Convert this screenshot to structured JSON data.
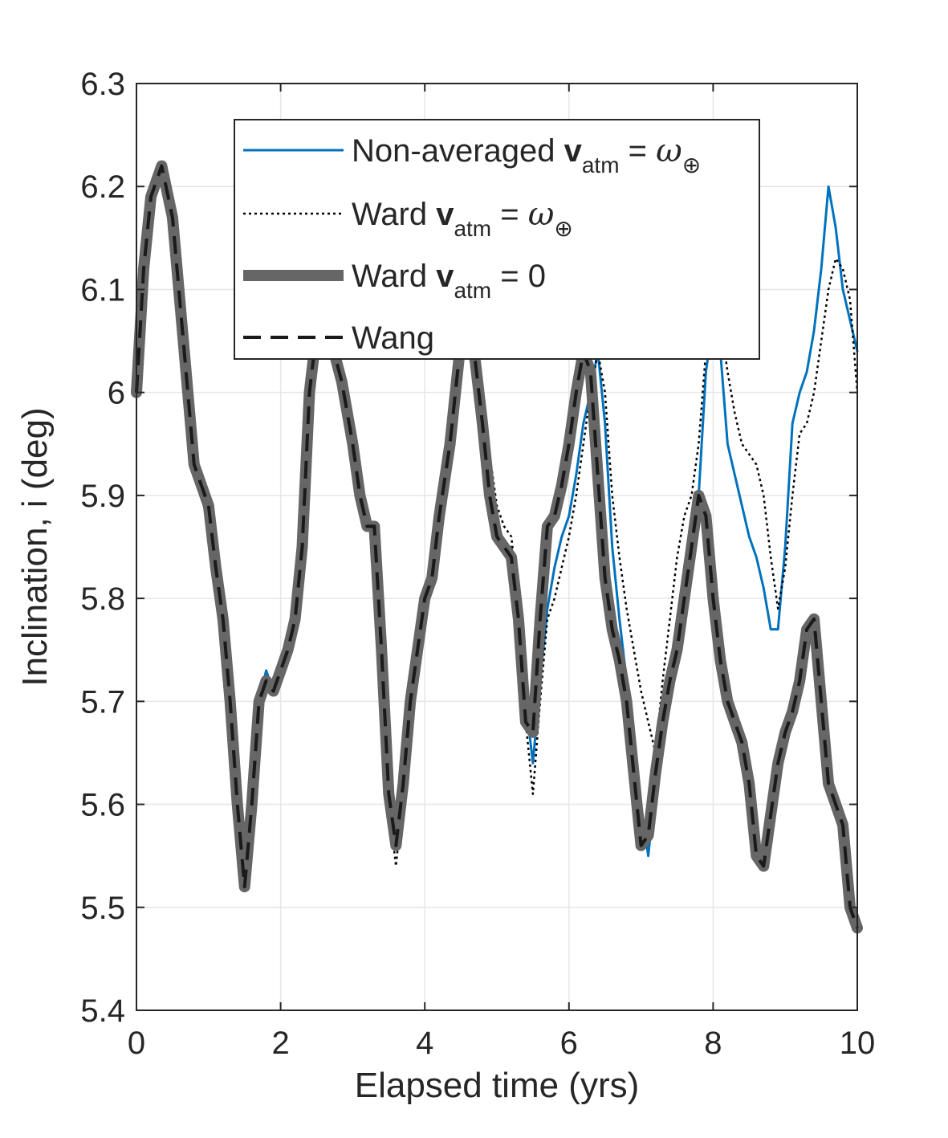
{
  "chart_data": {
    "type": "line",
    "title": "",
    "xlabel": "Elapsed time (yrs)",
    "ylabel": "Inclination, i (deg)",
    "xlim": [
      0,
      10
    ],
    "ylim": [
      5.4,
      6.3
    ],
    "xticks": [
      0,
      2,
      4,
      6,
      8,
      10
    ],
    "yticks": [
      5.4,
      5.5,
      5.6,
      5.7,
      5.8,
      5.9,
      6.0,
      6.1,
      6.2,
      6.3
    ],
    "xtick_labels": [
      "0",
      "2",
      "4",
      "6",
      "8",
      "10"
    ],
    "ytick_labels": [
      "5.4",
      "5.5",
      "5.6",
      "5.7",
      "5.8",
      "5.9",
      "6",
      "6.1",
      "6.2",
      "6.3"
    ],
    "grid": true,
    "legend_position": "top-center",
    "legend": [
      {
        "prefix": "Non-averaged ",
        "bold": "v",
        "sub": "atm",
        "eq": " = ",
        "sym": "ω",
        "symsub": "⊕"
      },
      {
        "prefix": "Ward ",
        "bold": "v",
        "sub": "atm",
        "eq": " = ",
        "sym": "ω",
        "symsub": "⊕"
      },
      {
        "prefix": "Ward ",
        "bold": "v",
        "sub": "atm",
        "eq": " = 0",
        "sym": "",
        "symsub": ""
      },
      {
        "prefix": "Wang",
        "bold": "",
        "sub": "",
        "eq": "",
        "sym": "",
        "symsub": ""
      }
    ],
    "series": [
      {
        "name": "Non-averaged v_atm = ω_⊕",
        "color": "#0072BD",
        "style": "solid-thin",
        "x": [
          0,
          0.1,
          0.2,
          0.35,
          0.5,
          0.65,
          0.8,
          0.9,
          1.0,
          1.1,
          1.2,
          1.3,
          1.4,
          1.5,
          1.6,
          1.7,
          1.8,
          1.9,
          2.0,
          2.1,
          2.2,
          2.3,
          2.4,
          2.55,
          2.7,
          2.85,
          3.0,
          3.1,
          3.2,
          3.3,
          3.4,
          3.5,
          3.6,
          3.7,
          3.8,
          3.9,
          4.0,
          4.1,
          4.2,
          4.35,
          4.5,
          4.6,
          4.7,
          4.8,
          4.9,
          5.0,
          5.1,
          5.2,
          5.3,
          5.4,
          5.5,
          5.6,
          5.7,
          5.8,
          5.9,
          6.0,
          6.1,
          6.2,
          6.3,
          6.4,
          6.5,
          6.6,
          6.7,
          6.8,
          6.9,
          7.0,
          7.1,
          7.2,
          7.3,
          7.4,
          7.5,
          7.6,
          7.7,
          7.8,
          7.9,
          8.0,
          8.1,
          8.2,
          8.3,
          8.4,
          8.5,
          8.6,
          8.7,
          8.8,
          8.9,
          9.0,
          9.1,
          9.2,
          9.3,
          9.4,
          9.5,
          9.6,
          9.7,
          9.8,
          9.9,
          10.0
        ],
        "y": [
          6.0,
          6.12,
          6.19,
          6.22,
          6.17,
          6.05,
          5.93,
          5.91,
          5.89,
          5.83,
          5.78,
          5.7,
          5.6,
          5.52,
          5.6,
          5.7,
          5.73,
          5.71,
          5.73,
          5.75,
          5.78,
          5.85,
          6.0,
          6.09,
          6.05,
          6.01,
          5.95,
          5.9,
          5.87,
          5.87,
          5.75,
          5.61,
          5.56,
          5.62,
          5.7,
          5.75,
          5.8,
          5.82,
          5.88,
          5.95,
          6.05,
          6.07,
          6.03,
          5.97,
          5.92,
          5.88,
          5.85,
          5.85,
          5.8,
          5.7,
          5.64,
          5.72,
          5.79,
          5.83,
          5.86,
          5.88,
          5.92,
          5.97,
          6.0,
          6.04,
          5.97,
          5.85,
          5.78,
          5.72,
          5.66,
          5.6,
          5.55,
          5.62,
          5.7,
          5.73,
          5.78,
          5.82,
          5.85,
          5.9,
          6.02,
          6.07,
          6.04,
          5.95,
          5.92,
          5.89,
          5.86,
          5.84,
          5.81,
          5.77,
          5.77,
          5.85,
          5.97,
          6.0,
          6.02,
          6.06,
          6.12,
          6.2,
          6.16,
          6.1,
          6.07,
          6.04
        ]
      },
      {
        "name": "Ward v_atm = ω_⊕",
        "color": "#000000",
        "style": "dotted",
        "x": [
          0,
          0.1,
          0.2,
          0.35,
          0.5,
          0.65,
          0.8,
          0.9,
          1.0,
          1.1,
          1.2,
          1.3,
          1.4,
          1.5,
          1.6,
          1.7,
          1.8,
          1.9,
          2.0,
          2.1,
          2.2,
          2.3,
          2.4,
          2.55,
          2.7,
          2.85,
          3.0,
          3.1,
          3.2,
          3.3,
          3.4,
          3.5,
          3.6,
          3.7,
          3.8,
          3.9,
          4.0,
          4.1,
          4.2,
          4.35,
          4.5,
          4.6,
          4.7,
          4.8,
          4.9,
          5.0,
          5.1,
          5.2,
          5.3,
          5.4,
          5.5,
          5.6,
          5.7,
          5.8,
          5.9,
          6.0,
          6.1,
          6.2,
          6.3,
          6.4,
          6.5,
          6.6,
          6.7,
          6.8,
          6.9,
          7.0,
          7.1,
          7.2,
          7.3,
          7.4,
          7.5,
          7.6,
          7.7,
          7.8,
          7.9,
          8.0,
          8.1,
          8.2,
          8.3,
          8.4,
          8.5,
          8.6,
          8.7,
          8.8,
          8.9,
          9.0,
          9.1,
          9.2,
          9.3,
          9.4,
          9.5,
          9.6,
          9.7,
          9.8,
          9.9,
          10.0
        ],
        "y": [
          6.0,
          6.12,
          6.19,
          6.22,
          6.17,
          6.05,
          5.93,
          5.91,
          5.89,
          5.83,
          5.78,
          5.7,
          5.6,
          5.52,
          5.6,
          5.7,
          5.72,
          5.71,
          5.73,
          5.75,
          5.78,
          5.85,
          6.0,
          6.09,
          6.05,
          6.01,
          5.95,
          5.9,
          5.87,
          5.87,
          5.74,
          5.6,
          5.54,
          5.61,
          5.69,
          5.75,
          5.8,
          5.82,
          5.88,
          5.95,
          6.05,
          6.07,
          6.04,
          6.0,
          5.94,
          5.89,
          5.87,
          5.86,
          5.8,
          5.68,
          5.61,
          5.7,
          5.78,
          5.8,
          5.83,
          5.86,
          5.9,
          5.95,
          6.0,
          6.04,
          6.0,
          5.9,
          5.84,
          5.79,
          5.75,
          5.71,
          5.68,
          5.65,
          5.72,
          5.78,
          5.84,
          5.88,
          5.9,
          5.95,
          6.04,
          6.09,
          6.07,
          6.02,
          5.98,
          5.95,
          5.94,
          5.93,
          5.9,
          5.84,
          5.79,
          5.83,
          5.9,
          5.96,
          5.97,
          6.0,
          6.05,
          6.1,
          6.13,
          6.12,
          6.09,
          6.0
        ]
      },
      {
        "name": "Ward v_atm = 0",
        "color": "#666666",
        "style": "solid-thick",
        "x": [
          0,
          0.1,
          0.2,
          0.35,
          0.5,
          0.65,
          0.8,
          0.9,
          1.0,
          1.1,
          1.2,
          1.3,
          1.4,
          1.5,
          1.6,
          1.7,
          1.8,
          1.9,
          2.0,
          2.1,
          2.2,
          2.3,
          2.4,
          2.55,
          2.7,
          2.85,
          3.0,
          3.1,
          3.2,
          3.3,
          3.4,
          3.5,
          3.6,
          3.7,
          3.8,
          3.9,
          4.0,
          4.1,
          4.2,
          4.35,
          4.5,
          4.6,
          4.7,
          4.8,
          4.9,
          5.0,
          5.1,
          5.2,
          5.3,
          5.4,
          5.5,
          5.6,
          5.7,
          5.8,
          5.9,
          6.0,
          6.1,
          6.2,
          6.3,
          6.4,
          6.5,
          6.6,
          6.7,
          6.8,
          6.9,
          7.0,
          7.1,
          7.2,
          7.3,
          7.4,
          7.5,
          7.6,
          7.7,
          7.8,
          7.9,
          8.0,
          8.1,
          8.2,
          8.3,
          8.4,
          8.5,
          8.6,
          8.7,
          8.8,
          8.9,
          9.0,
          9.1,
          9.2,
          9.3,
          9.4,
          9.5,
          9.6,
          9.7,
          9.8,
          9.9,
          10.0
        ],
        "y": [
          6.0,
          6.12,
          6.19,
          6.22,
          6.17,
          6.05,
          5.93,
          5.91,
          5.89,
          5.83,
          5.78,
          5.7,
          5.6,
          5.52,
          5.6,
          5.7,
          5.72,
          5.71,
          5.73,
          5.75,
          5.78,
          5.85,
          6.0,
          6.09,
          6.05,
          6.01,
          5.95,
          5.9,
          5.87,
          5.87,
          5.75,
          5.61,
          5.56,
          5.62,
          5.7,
          5.75,
          5.8,
          5.82,
          5.88,
          5.95,
          6.05,
          6.07,
          6.03,
          5.97,
          5.9,
          5.86,
          5.85,
          5.84,
          5.78,
          5.68,
          5.67,
          5.78,
          5.87,
          5.88,
          5.91,
          5.95,
          6.0,
          6.04,
          6.02,
          5.92,
          5.82,
          5.77,
          5.74,
          5.7,
          5.63,
          5.56,
          5.57,
          5.63,
          5.68,
          5.72,
          5.75,
          5.8,
          5.85,
          5.9,
          5.88,
          5.8,
          5.74,
          5.7,
          5.68,
          5.66,
          5.62,
          5.55,
          5.54,
          5.59,
          5.64,
          5.67,
          5.69,
          5.72,
          5.77,
          5.78,
          5.7,
          5.62,
          5.6,
          5.58,
          5.5,
          5.48
        ]
      },
      {
        "name": "Wang",
        "color": "#1a1a1a",
        "style": "dashed",
        "x": [
          0,
          0.1,
          0.2,
          0.35,
          0.5,
          0.65,
          0.8,
          0.9,
          1.0,
          1.1,
          1.2,
          1.3,
          1.4,
          1.5,
          1.6,
          1.7,
          1.8,
          1.9,
          2.0,
          2.1,
          2.2,
          2.3,
          2.4,
          2.55,
          2.7,
          2.85,
          3.0,
          3.1,
          3.2,
          3.3,
          3.4,
          3.5,
          3.6,
          3.7,
          3.8,
          3.9,
          4.0,
          4.1,
          4.2,
          4.35,
          4.5,
          4.6,
          4.7,
          4.8,
          4.9,
          5.0,
          5.1,
          5.2,
          5.3,
          5.4,
          5.5,
          5.6,
          5.7,
          5.8,
          5.9,
          6.0,
          6.1,
          6.2,
          6.3,
          6.4,
          6.5,
          6.6,
          6.7,
          6.8,
          6.9,
          7.0,
          7.1,
          7.2,
          7.3,
          7.4,
          7.5,
          7.6,
          7.7,
          7.8,
          7.9,
          8.0,
          8.1,
          8.2,
          8.3,
          8.4,
          8.5,
          8.6,
          8.7,
          8.8,
          8.9,
          9.0,
          9.1,
          9.2,
          9.3,
          9.4,
          9.5,
          9.6,
          9.7,
          9.8,
          9.9,
          10.0
        ],
        "y": [
          6.0,
          6.12,
          6.19,
          6.22,
          6.17,
          6.05,
          5.93,
          5.91,
          5.89,
          5.83,
          5.78,
          5.7,
          5.6,
          5.52,
          5.6,
          5.7,
          5.72,
          5.71,
          5.73,
          5.75,
          5.78,
          5.85,
          6.0,
          6.09,
          6.05,
          6.01,
          5.95,
          5.9,
          5.87,
          5.87,
          5.75,
          5.61,
          5.56,
          5.62,
          5.7,
          5.75,
          5.8,
          5.82,
          5.88,
          5.95,
          6.05,
          6.07,
          6.03,
          5.97,
          5.9,
          5.86,
          5.85,
          5.84,
          5.78,
          5.68,
          5.67,
          5.78,
          5.87,
          5.88,
          5.91,
          5.95,
          6.0,
          6.04,
          6.02,
          5.92,
          5.82,
          5.77,
          5.74,
          5.7,
          5.63,
          5.56,
          5.57,
          5.63,
          5.68,
          5.72,
          5.75,
          5.8,
          5.85,
          5.9,
          5.88,
          5.8,
          5.74,
          5.7,
          5.68,
          5.66,
          5.62,
          5.55,
          5.54,
          5.59,
          5.64,
          5.67,
          5.69,
          5.72,
          5.77,
          5.78,
          5.7,
          5.62,
          5.6,
          5.58,
          5.5,
          5.48
        ]
      }
    ]
  }
}
